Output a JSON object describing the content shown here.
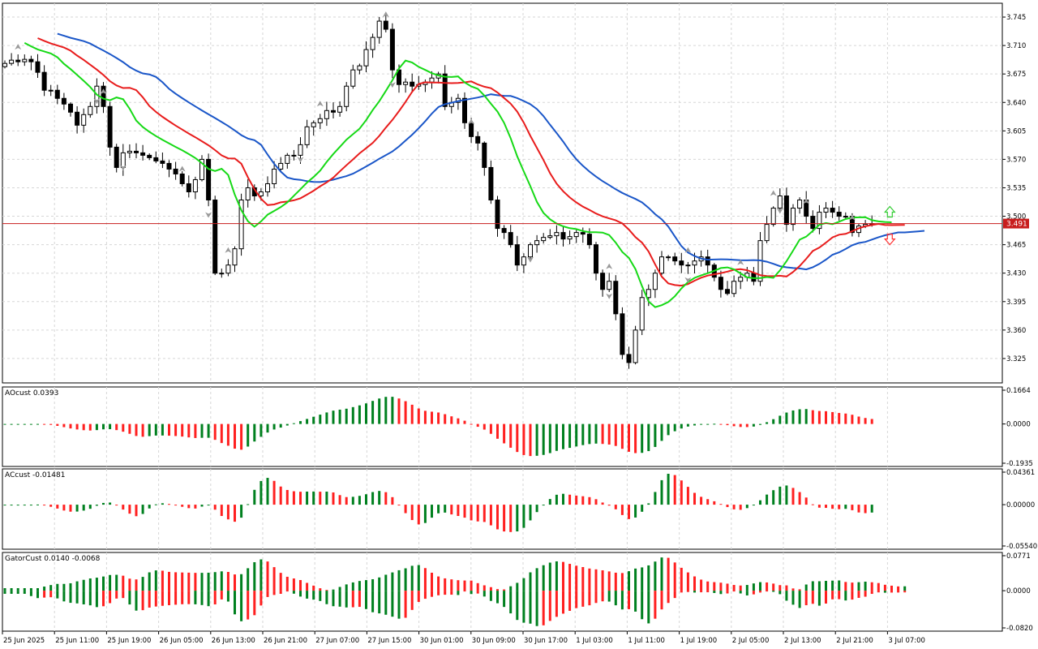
{
  "colors": {
    "bull": "#00801f",
    "bear": "#ff2020",
    "jaw": "#1a56c8",
    "teeth": "#e81c1c",
    "lips": "#16d916",
    "grid": "#d6d6d6",
    "price_line": "#c81e1e",
    "fractal": "#9a9a9a",
    "arrow_up": "#32cd32",
    "arrow_down": "#ff3030"
  },
  "chart_data": [
    {
      "type": "candlestick",
      "name": "main",
      "current_price": 3.491,
      "current_price_label": "3.491",
      "y_ticks": [
        "3.745",
        "3.710",
        "3.675",
        "3.640",
        "3.605",
        "3.570",
        "3.535",
        "3.500",
        "3.465",
        "3.430",
        "3.395",
        "3.360",
        "3.325"
      ],
      "ylim": [
        3.295,
        3.762
      ],
      "closes": [
        3.688,
        3.692,
        3.69,
        3.693,
        3.69,
        3.677,
        3.655,
        3.655,
        3.645,
        3.638,
        3.628,
        3.612,
        3.625,
        3.635,
        3.66,
        3.635,
        3.585,
        3.56,
        3.578,
        3.58,
        3.578,
        3.575,
        3.572,
        3.568,
        3.565,
        3.558,
        3.552,
        3.54,
        3.53,
        3.545,
        3.57,
        3.52,
        3.43,
        3.43,
        3.44,
        3.46,
        3.52,
        3.535,
        3.525,
        3.53,
        3.54,
        3.558,
        3.565,
        3.575,
        3.575,
        3.588,
        3.61,
        3.615,
        3.62,
        3.63,
        3.628,
        3.635,
        3.66,
        3.68,
        3.685,
        3.705,
        3.72,
        3.74,
        3.73,
        3.68,
        3.662,
        3.665,
        3.66,
        3.662,
        3.665,
        3.67,
        3.675,
        3.635,
        3.64,
        3.645,
        3.615,
        3.598,
        3.59,
        3.56,
        3.52,
        3.485,
        3.48,
        3.465,
        3.44,
        3.45,
        3.465,
        3.47,
        3.474,
        3.476,
        3.48,
        3.472,
        3.475,
        3.48,
        3.478,
        3.465,
        3.43,
        3.41,
        3.42,
        3.38,
        3.33,
        3.32,
        3.36,
        3.4,
        3.41,
        3.43,
        3.45,
        3.45,
        3.445,
        3.44,
        3.44,
        3.445,
        3.45,
        3.44,
        3.425,
        3.41,
        3.405,
        3.42,
        3.425,
        3.43,
        3.42,
        3.47,
        3.49,
        3.51,
        3.525,
        3.49,
        3.51,
        3.52,
        3.5,
        3.485,
        3.505,
        3.51,
        3.505,
        3.5,
        3.5,
        3.48,
        3.488,
        3.49,
        3.491
      ],
      "fractals_up": [
        2,
        15,
        27,
        34,
        48,
        58,
        71,
        92,
        104,
        112,
        117,
        122,
        129,
        134
      ],
      "fractals_down": [
        14,
        18,
        31,
        45,
        59,
        80,
        92,
        104,
        118
      ]
    },
    {
      "type": "bar",
      "name": "AOcust",
      "title": "AOcust 0.0393",
      "y_ticks": [
        "0.1664",
        "0.0000",
        "-0.1935"
      ],
      "ylim": [
        -0.1935,
        0.1664
      ]
    },
    {
      "type": "bar",
      "name": "ACcust",
      "title": "ACcust -0.01481",
      "y_ticks": [
        "0.04361",
        "0.00000",
        "-0.05540"
      ],
      "ylim": [
        -0.0554,
        0.04361
      ]
    },
    {
      "type": "bar",
      "name": "GatorCust",
      "title": "GatorCust 0.0140 -0.0068",
      "y_ticks": [
        "0.0771",
        "0.0000",
        "-0.0820"
      ],
      "ylim": [
        -0.082,
        0.0771
      ]
    }
  ],
  "x_ticks": [
    "25 Jun 2025",
    "25 Jun 11:00",
    "25 Jun 19:00",
    "26 Jun 05:00",
    "26 Jun 13:00",
    "26 Jun 21:00",
    "27 Jun 07:00",
    "27 Jun 15:00",
    "30 Jun 01:00",
    "30 Jun 09:00",
    "30 Jun 17:00",
    "1 Jul 03:00",
    "1 Jul 11:00",
    "1 Jul 19:00",
    "2 Jul 05:00",
    "2 Jul 13:00",
    "2 Jul 21:00",
    "3 Jul 07:00"
  ]
}
